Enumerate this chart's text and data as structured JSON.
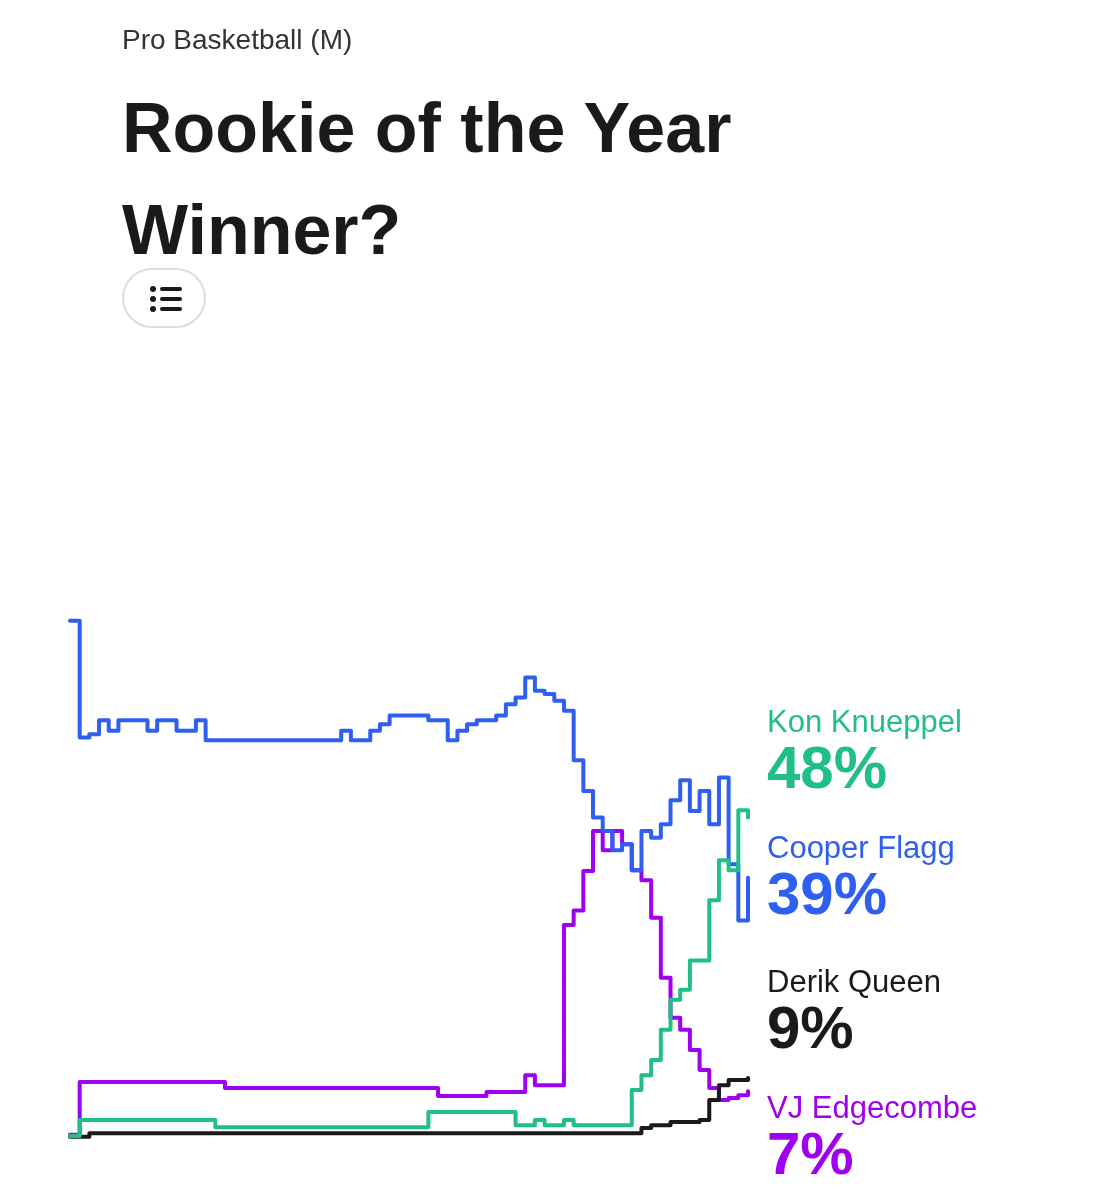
{
  "chart_data": {
    "type": "step",
    "subtitle": "Pro Basketball (M)",
    "title": "Rookie of the Year Winner?",
    "categories": [
      null,
      null,
      null,
      null,
      null,
      null,
      null,
      null,
      null,
      null,
      null,
      null,
      null,
      null,
      null,
      null,
      null,
      null,
      null,
      null,
      null,
      null,
      null,
      null,
      null,
      null,
      null,
      null,
      null,
      null,
      null,
      null,
      null,
      null,
      null,
      null,
      null,
      null,
      null,
      null,
      null,
      null,
      null,
      null,
      null,
      null,
      null,
      null,
      null,
      null,
      null,
      null,
      null,
      null,
      null,
      null,
      null,
      null,
      null,
      null,
      null,
      null,
      null,
      null,
      null,
      null,
      null,
      null,
      null,
      null,
      null
    ],
    "tick_labels": false,
    "legend": false,
    "marker": "none",
    "line_style": "solid",
    "series": [
      {
        "name": "Kon Knueppel",
        "color": "#1fbf86",
        "values": [
          0.3,
          2.7,
          2.7,
          2.7,
          2.7,
          2.7,
          2.7,
          2.7,
          2.7,
          2.7,
          2.7,
          2.7,
          2.7,
          2.7,
          2.7,
          1.6,
          1.6,
          1.6,
          1.6,
          1.6,
          1.6,
          1.6,
          1.6,
          1.6,
          1.6,
          1.6,
          1.6,
          1.6,
          1.6,
          1.6,
          1.6,
          1.6,
          1.6,
          1.6,
          1.6,
          1.6,
          1.6,
          3.9,
          3.9,
          3.9,
          3.9,
          3.9,
          3.9,
          3.9,
          3.9,
          3.9,
          1.9,
          1.9,
          2.7,
          1.9,
          1.9,
          2.7,
          1.9,
          1.9,
          1.9,
          1.9,
          1.9,
          1.9,
          7.2,
          9.4,
          11.7,
          16.2,
          20.7,
          22.2,
          26.6,
          26.6,
          35.6,
          41.6,
          40.1,
          49.1,
          48
        ],
        "value_labels": [
          null,
          null,
          null,
          null,
          null,
          null,
          null,
          null,
          null,
          null,
          null,
          null,
          null,
          null,
          null,
          null,
          null,
          null,
          null,
          null,
          null,
          null,
          null,
          null,
          null,
          null,
          null,
          null,
          null,
          null,
          null,
          null,
          null,
          null,
          null,
          null,
          null,
          null,
          null,
          null,
          null,
          null,
          null,
          null,
          null,
          null,
          null,
          null,
          null,
          null,
          null,
          null,
          null,
          null,
          null,
          null,
          null,
          null,
          null,
          null,
          null,
          null,
          null,
          null,
          null,
          null,
          null,
          null,
          null,
          null,
          "48%"
        ]
      },
      {
        "name": "Cooper Flagg",
        "color": "#2f5ff0",
        "values": [
          77.5,
          60,
          60.5,
          62.6,
          61,
          62.6,
          62.6,
          62.6,
          61,
          62.6,
          62.6,
          61,
          61,
          62.6,
          59.6,
          59.6,
          59.6,
          59.6,
          59.6,
          59.6,
          59.6,
          59.6,
          59.6,
          59.6,
          59.6,
          59.6,
          59.6,
          59.6,
          61,
          59.6,
          59.6,
          61,
          62,
          63.3,
          63.3,
          63.3,
          63.3,
          62.6,
          62.6,
          59.6,
          61,
          62,
          62.6,
          62.6,
          63.3,
          65,
          66,
          69,
          67,
          66.5,
          65.5,
          64,
          56.6,
          52,
          48,
          46,
          43.1,
          44,
          40.1,
          46,
          45,
          47,
          50.6,
          53.6,
          49,
          52,
          47,
          54,
          41,
          32.6,
          39
        ],
        "value_labels": [
          null,
          null,
          null,
          null,
          null,
          null,
          null,
          null,
          null,
          null,
          null,
          null,
          null,
          null,
          null,
          null,
          null,
          null,
          null,
          null,
          null,
          null,
          null,
          null,
          null,
          null,
          null,
          null,
          null,
          null,
          null,
          null,
          null,
          null,
          null,
          null,
          null,
          null,
          null,
          null,
          null,
          null,
          null,
          null,
          null,
          null,
          null,
          null,
          null,
          null,
          null,
          null,
          null,
          null,
          null,
          null,
          null,
          null,
          null,
          null,
          null,
          null,
          null,
          null,
          null,
          null,
          null,
          null,
          null,
          null,
          "39%"
        ]
      },
      {
        "name": "Derik Queen",
        "color": "#1a1a1a",
        "values": [
          0.2,
          0.2,
          0.7,
          0.7,
          0.7,
          0.7,
          0.7,
          0.7,
          0.7,
          0.7,
          0.7,
          0.7,
          0.7,
          0.7,
          0.7,
          0.7,
          0.7,
          0.7,
          0.7,
          0.7,
          0.7,
          0.7,
          0.7,
          0.7,
          0.7,
          0.7,
          0.7,
          0.7,
          0.7,
          0.7,
          0.7,
          0.7,
          0.7,
          0.7,
          0.7,
          0.7,
          0.7,
          0.7,
          0.7,
          0.7,
          0.7,
          0.7,
          0.7,
          0.7,
          0.7,
          0.7,
          0.7,
          0.7,
          0.7,
          0.7,
          0.7,
          0.7,
          0.7,
          0.7,
          0.7,
          0.7,
          0.7,
          0.7,
          0.7,
          1.5,
          1.9,
          1.9,
          2.4,
          2.4,
          2.4,
          2.7,
          5.7,
          7.9,
          8.7,
          8.7,
          9
        ],
        "value_labels": [
          null,
          null,
          null,
          null,
          null,
          null,
          null,
          null,
          null,
          null,
          null,
          null,
          null,
          null,
          null,
          null,
          null,
          null,
          null,
          null,
          null,
          null,
          null,
          null,
          null,
          null,
          null,
          null,
          null,
          null,
          null,
          null,
          null,
          null,
          null,
          null,
          null,
          null,
          null,
          null,
          null,
          null,
          null,
          null,
          null,
          null,
          null,
          null,
          null,
          null,
          null,
          null,
          null,
          null,
          null,
          null,
          null,
          null,
          null,
          null,
          null,
          null,
          null,
          null,
          null,
          null,
          null,
          null,
          null,
          null,
          "9%"
        ]
      },
      {
        "name": "VJ Edgecombe",
        "color": "#a000f0",
        "values": [
          0.5,
          8.4,
          8.4,
          8.4,
          8.4,
          8.4,
          8.4,
          8.4,
          8.4,
          8.4,
          8.4,
          8.4,
          8.4,
          8.4,
          8.4,
          8.4,
          7.5,
          7.5,
          7.5,
          7.5,
          7.5,
          7.5,
          7.5,
          7.5,
          7.5,
          7.5,
          7.5,
          7.5,
          7.5,
          7.5,
          7.5,
          7.5,
          7.5,
          7.5,
          7.5,
          7.5,
          7.5,
          7.5,
          6.3,
          6.3,
          6.3,
          6.3,
          6.3,
          6.9,
          6.9,
          6.9,
          6.9,
          9.4,
          7.9,
          7.9,
          7.9,
          31.9,
          34.1,
          40,
          46,
          43.1,
          46,
          44,
          40.1,
          38.6,
          33,
          24,
          18,
          16.2,
          13.2,
          10.2,
          7.5,
          5.7,
          6,
          6.4,
          7
        ],
        "value_labels": [
          null,
          null,
          null,
          null,
          null,
          null,
          null,
          null,
          null,
          null,
          null,
          null,
          null,
          null,
          null,
          null,
          null,
          null,
          null,
          null,
          null,
          null,
          null,
          null,
          null,
          null,
          null,
          null,
          null,
          null,
          null,
          null,
          null,
          null,
          null,
          null,
          null,
          null,
          null,
          null,
          null,
          null,
          null,
          null,
          null,
          null,
          null,
          null,
          null,
          null,
          null,
          null,
          null,
          null,
          null,
          null,
          null,
          null,
          null,
          null,
          null,
          null,
          null,
          null,
          null,
          null,
          null,
          null,
          null,
          null,
          "7%"
        ]
      }
    ]
  }
}
